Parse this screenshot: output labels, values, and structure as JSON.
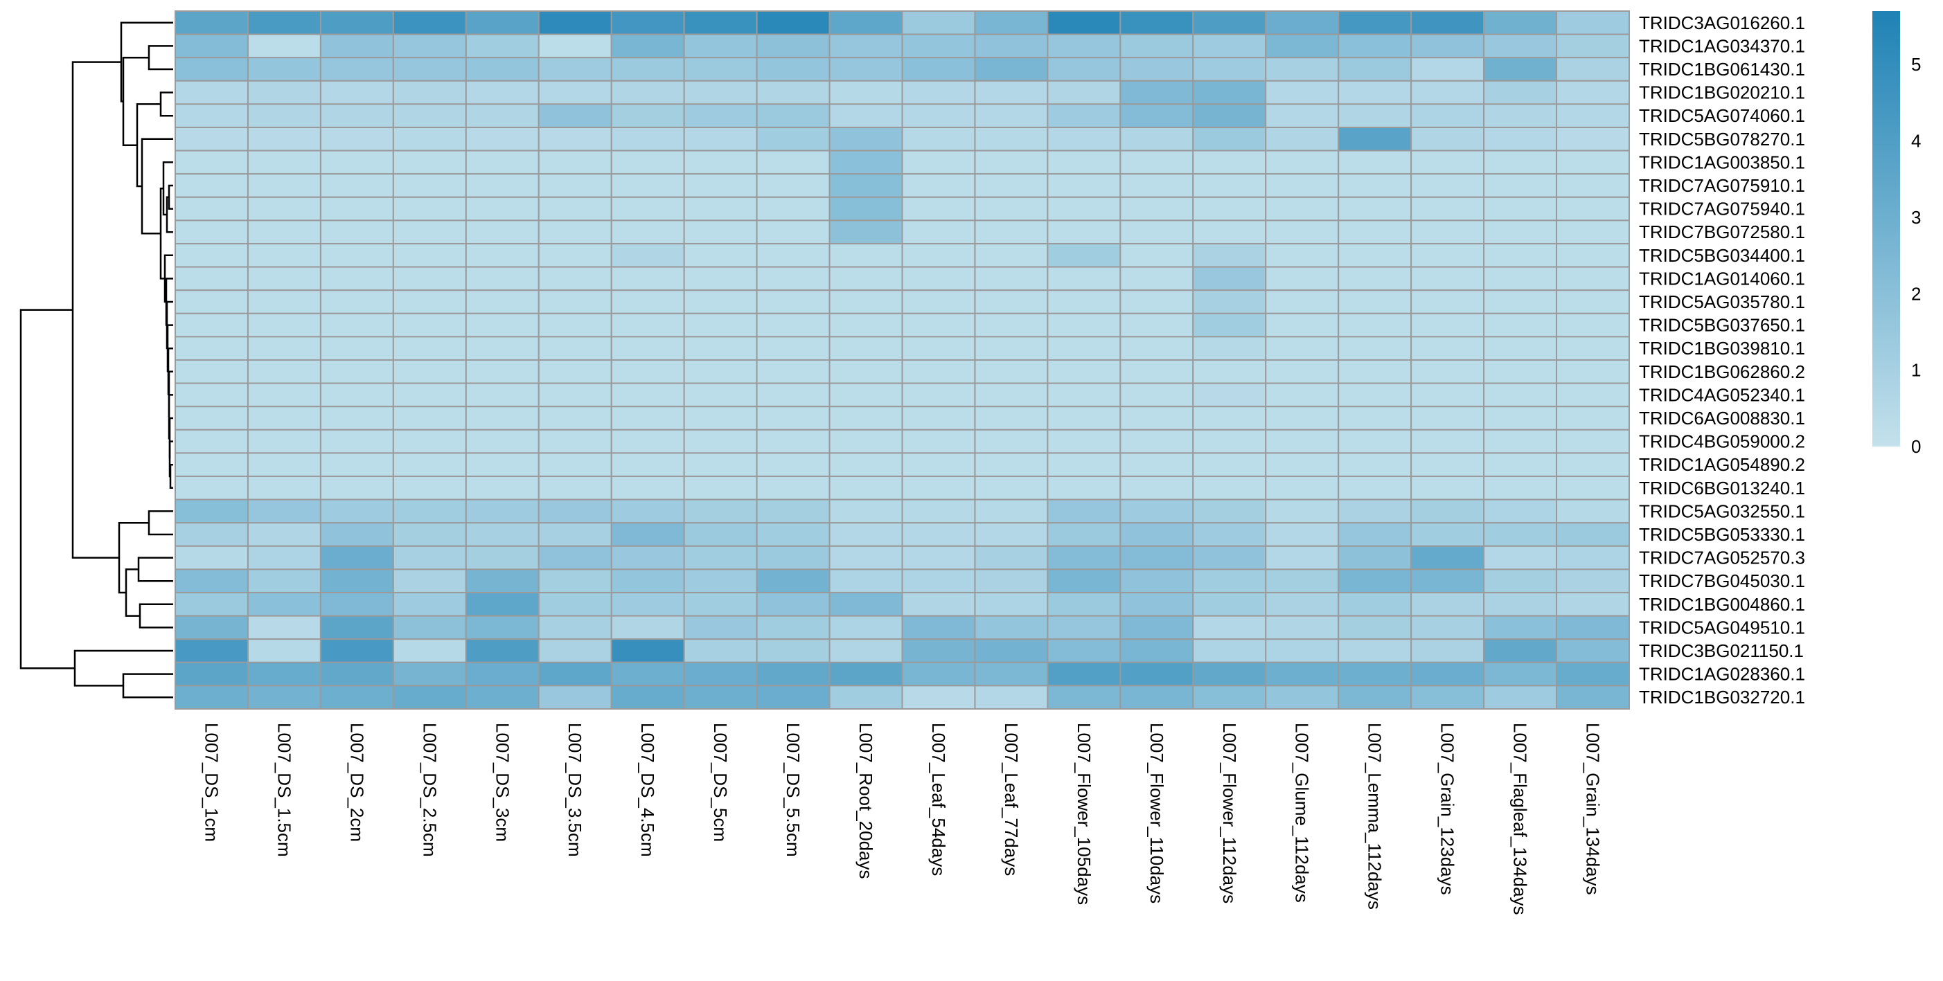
{
  "chart_data": {
    "type": "heatmap",
    "title": "",
    "xlabel": "",
    "ylabel": "",
    "rows": [
      "TRIDC3AG016260.1",
      "TRIDC1AG034370.1",
      "TRIDC1BG061430.1",
      "TRIDC1BG020210.1",
      "TRIDC5AG074060.1",
      "TRIDC5BG078270.1",
      "TRIDC1AG003850.1",
      "TRIDC7AG075910.1",
      "TRIDC7AG075940.1",
      "TRIDC7BG072580.1",
      "TRIDC5BG034400.1",
      "TRIDC1AG014060.1",
      "TRIDC5AG035780.1",
      "TRIDC5BG037650.1",
      "TRIDC1BG039810.1",
      "TRIDC1BG062860.2",
      "TRIDC4AG052340.1",
      "TRIDC6AG008830.1",
      "TRIDC4BG059000.2",
      "TRIDC1AG054890.2",
      "TRIDC6BG013240.1",
      "TRIDC5AG032550.1",
      "TRIDC5BG053330.1",
      "TRIDC7AG052570.3",
      "TRIDC7BG045030.1",
      "TRIDC1BG004860.1",
      "TRIDC5AG049510.1",
      "TRIDC3BG021150.1",
      "TRIDC1AG028360.1",
      "TRIDC1BG032720.1"
    ],
    "columns": [
      "L007_DS_1cm",
      "L007_DS_1.5cm",
      "L007_DS_2cm",
      "L007_DS_2.5cm",
      "L007_DS_3cm",
      "L007_DS_3.5cm",
      "L007_DS_4.5cm",
      "L007_DS_5cm",
      "L007_DS_5.5cm",
      "L007_Root_20days",
      "L007_Leaf_54days",
      "L007_Leaf_77days",
      "L007_Flower_105days",
      "L007_Flower_110days",
      "L007_Flower_112days",
      "L007_Glume_112days",
      "L007_Lemma_112days",
      "L007_Grain_123days",
      "L007_Flagleaf_134days",
      "L007_Grain_134days"
    ],
    "values": [
      [
        3.6,
        4.2,
        4.1,
        4.7,
        3.7,
        5.2,
        4.5,
        4.8,
        5.3,
        3.5,
        1.4,
        2.6,
        5.3,
        4.8,
        4.1,
        3.1,
        4.4,
        4.6,
        2.9,
        1.3
      ],
      [
        2.2,
        0.3,
        1.8,
        1.6,
        1.2,
        0.3,
        2.6,
        1.7,
        1.9,
        1.6,
        1.7,
        1.8,
        1.6,
        1.4,
        1.3,
        2.5,
        2.0,
        1.8,
        1.5,
        1.1
      ],
      [
        2.0,
        1.7,
        1.6,
        1.6,
        1.7,
        1.3,
        1.4,
        1.4,
        1.7,
        1.6,
        2.0,
        2.6,
        1.6,
        1.5,
        1.3,
        1.0,
        1.4,
        0.6,
        2.9,
        0.9
      ],
      [
        0.6,
        0.7,
        0.6,
        0.7,
        0.6,
        0.6,
        0.7,
        0.7,
        0.7,
        0.5,
        0.6,
        0.6,
        0.7,
        2.4,
        2.6,
        0.6,
        0.6,
        0.6,
        1.0,
        0.6
      ],
      [
        0.6,
        0.7,
        0.7,
        0.7,
        0.7,
        1.8,
        1.1,
        1.3,
        1.4,
        0.6,
        0.6,
        0.6,
        1.3,
        2.2,
        2.7,
        0.6,
        0.7,
        0.8,
        0.7,
        0.6
      ],
      [
        0.4,
        0.4,
        0.4,
        0.5,
        0.4,
        0.4,
        0.6,
        0.6,
        1.2,
        1.8,
        0.5,
        0.5,
        0.6,
        0.7,
        1.4,
        0.7,
        3.7,
        0.7,
        0.6,
        0.4
      ],
      [
        0.3,
        0.3,
        0.3,
        0.3,
        0.3,
        0.3,
        0.3,
        0.3,
        0.3,
        2.0,
        0.3,
        0.3,
        0.3,
        0.3,
        0.3,
        0.3,
        0.3,
        0.3,
        0.3,
        0.3
      ],
      [
        0.3,
        0.3,
        0.3,
        0.3,
        0.3,
        0.3,
        0.3,
        0.3,
        0.3,
        2.1,
        0.3,
        0.3,
        0.3,
        0.3,
        0.3,
        0.3,
        0.3,
        0.3,
        0.3,
        0.3
      ],
      [
        0.3,
        0.3,
        0.3,
        0.3,
        0.3,
        0.3,
        0.3,
        0.3,
        0.3,
        2.1,
        0.3,
        0.3,
        0.3,
        0.3,
        0.3,
        0.3,
        0.3,
        0.3,
        0.3,
        0.3
      ],
      [
        0.3,
        0.3,
        0.3,
        0.3,
        0.3,
        0.3,
        0.3,
        0.3,
        0.3,
        1.9,
        0.3,
        0.3,
        0.3,
        0.3,
        0.3,
        0.3,
        0.3,
        0.3,
        0.3,
        0.3
      ],
      [
        0.3,
        0.3,
        0.3,
        0.3,
        0.3,
        0.3,
        0.7,
        0.3,
        0.3,
        0.3,
        0.3,
        0.3,
        1.2,
        0.3,
        0.9,
        0.3,
        0.3,
        0.3,
        0.3,
        0.3
      ],
      [
        0.3,
        0.3,
        0.3,
        0.3,
        0.3,
        0.3,
        0.3,
        0.3,
        0.3,
        0.3,
        0.3,
        0.3,
        0.3,
        0.3,
        1.5,
        0.3,
        0.3,
        0.3,
        0.3,
        0.3
      ],
      [
        0.3,
        0.3,
        0.3,
        0.3,
        0.3,
        0.3,
        0.3,
        0.3,
        0.3,
        0.3,
        0.3,
        0.3,
        0.3,
        0.3,
        1.0,
        0.3,
        0.3,
        0.3,
        0.3,
        0.3
      ],
      [
        0.3,
        0.3,
        0.3,
        0.3,
        0.3,
        0.3,
        0.3,
        0.3,
        0.3,
        0.3,
        0.3,
        0.3,
        0.3,
        0.3,
        1.2,
        0.3,
        0.3,
        0.3,
        0.3,
        0.3
      ],
      [
        0.3,
        0.3,
        0.3,
        0.3,
        0.3,
        0.3,
        0.3,
        0.3,
        0.3,
        0.3,
        0.3,
        0.3,
        0.3,
        0.3,
        0.5,
        0.3,
        0.3,
        0.3,
        0.3,
        0.3
      ],
      [
        0.3,
        0.3,
        0.3,
        0.3,
        0.3,
        0.3,
        0.3,
        0.3,
        0.3,
        0.3,
        0.3,
        0.3,
        0.3,
        0.3,
        0.3,
        0.3,
        0.3,
        0.3,
        0.3,
        0.3
      ],
      [
        0.3,
        0.3,
        0.3,
        0.3,
        0.3,
        0.3,
        0.3,
        0.3,
        0.3,
        0.3,
        0.3,
        0.3,
        0.3,
        0.3,
        0.4,
        0.3,
        0.3,
        0.3,
        0.3,
        0.3
      ],
      [
        0.3,
        0.3,
        0.3,
        0.3,
        0.3,
        0.3,
        0.3,
        0.3,
        0.3,
        0.3,
        0.3,
        0.3,
        0.3,
        0.3,
        0.3,
        0.3,
        0.3,
        0.3,
        0.3,
        0.3
      ],
      [
        0.3,
        0.3,
        0.3,
        0.3,
        0.3,
        0.3,
        0.3,
        0.3,
        0.3,
        0.3,
        0.3,
        0.3,
        0.3,
        0.3,
        0.3,
        0.3,
        0.3,
        0.3,
        0.3,
        0.3
      ],
      [
        0.3,
        0.3,
        0.3,
        0.3,
        0.3,
        0.3,
        0.3,
        0.3,
        0.3,
        0.3,
        0.3,
        0.3,
        0.3,
        0.3,
        0.3,
        0.3,
        0.3,
        0.3,
        0.3,
        0.3
      ],
      [
        0.3,
        0.3,
        0.3,
        0.3,
        0.3,
        0.3,
        0.3,
        0.3,
        0.3,
        0.3,
        0.3,
        0.3,
        0.3,
        0.3,
        0.3,
        0.3,
        0.3,
        0.3,
        0.3,
        0.3
      ],
      [
        2.1,
        1.6,
        1.3,
        1.2,
        1.3,
        1.5,
        1.3,
        1.1,
        1.1,
        0.5,
        0.5,
        0.5,
        1.6,
        1.3,
        1.1,
        0.5,
        0.9,
        1.1,
        0.8,
        0.5
      ],
      [
        1.0,
        0.7,
        1.8,
        1.1,
        1.0,
        1.0,
        2.4,
        1.4,
        1.2,
        0.6,
        0.6,
        0.6,
        1.4,
        1.8,
        1.3,
        0.6,
        1.6,
        1.2,
        1.2,
        1.4
      ],
      [
        0.5,
        0.8,
        3.1,
        1.0,
        1.1,
        1.8,
        1.5,
        1.2,
        1.4,
        0.6,
        0.6,
        1.0,
        2.2,
        2.2,
        1.8,
        0.6,
        1.9,
        3.3,
        0.6,
        0.8
      ],
      [
        2.2,
        1.2,
        2.8,
        0.9,
        2.7,
        1.1,
        1.7,
        1.3,
        2.8,
        0.8,
        0.8,
        0.9,
        2.6,
        1.8,
        1.2,
        1.1,
        2.6,
        2.6,
        1.1,
        0.9
      ],
      [
        1.4,
        2.0,
        2.4,
        1.3,
        3.5,
        1.2,
        1.3,
        1.2,
        1.8,
        2.4,
        0.7,
        0.8,
        1.4,
        1.8,
        1.2,
        0.9,
        1.2,
        0.9,
        0.9,
        0.7
      ],
      [
        2.7,
        0.4,
        3.6,
        1.9,
        2.5,
        1.0,
        0.7,
        1.5,
        1.2,
        0.8,
        2.4,
        1.7,
        1.6,
        2.4,
        0.6,
        0.7,
        1.1,
        1.0,
        2.0,
        2.4
      ],
      [
        4.3,
        0.5,
        4.3,
        0.5,
        4.1,
        0.9,
        4.9,
        1.0,
        1.1,
        0.7,
        2.7,
        2.8,
        2.2,
        2.6,
        0.8,
        0.8,
        0.7,
        0.9,
        3.4,
        2.2
      ],
      [
        3.6,
        3.2,
        3.4,
        2.7,
        3.1,
        3.5,
        3.0,
        3.1,
        3.4,
        3.6,
        2.6,
        2.5,
        3.9,
        3.9,
        3.4,
        3.0,
        3.0,
        3.1,
        2.5,
        3.2
      ],
      [
        3.0,
        2.8,
        3.0,
        3.2,
        3.0,
        1.5,
        3.2,
        3.0,
        3.1,
        1.2,
        0.4,
        0.6,
        2.5,
        2.6,
        2.1,
        1.7,
        2.5,
        2.1,
        1.3,
        2.6
      ]
    ],
    "legend": {
      "range": [
        0,
        5.7
      ],
      "ticks": [
        "0",
        "1",
        "2",
        "3",
        "4",
        "5"
      ],
      "low_color": "#C4E1EC",
      "high_color": "#1F82B5"
    },
    "cell_border_color": "#9A9A9A",
    "dendrogram": {
      "shown": true,
      "side": "left",
      "type": "row-clustering",
      "edge_color": "#000000"
    }
  }
}
